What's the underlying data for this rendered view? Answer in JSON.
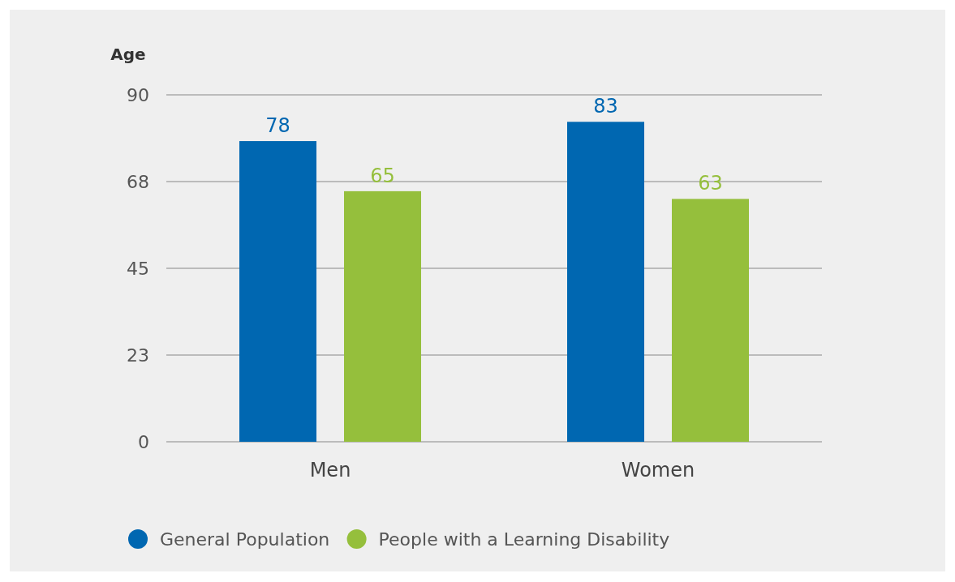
{
  "chart_data": {
    "type": "bar",
    "ylabel": "Age",
    "categories": [
      "Men",
      "Women"
    ],
    "series": [
      {
        "name": "General Population",
        "color": "#0067b1",
        "values": [
          78,
          83
        ]
      },
      {
        "name": "People with a Learning Disability",
        "color": "#95bf3c",
        "values": [
          65,
          63
        ]
      }
    ],
    "ylim": [
      0,
      90
    ],
    "yticks": [
      0,
      {
        "value": 22.5,
        "label": "23"
      },
      45,
      {
        "value": 67.5,
        "label": "68"
      },
      90
    ],
    "grid": "y",
    "data_labels": true,
    "legend": "bottom left"
  }
}
